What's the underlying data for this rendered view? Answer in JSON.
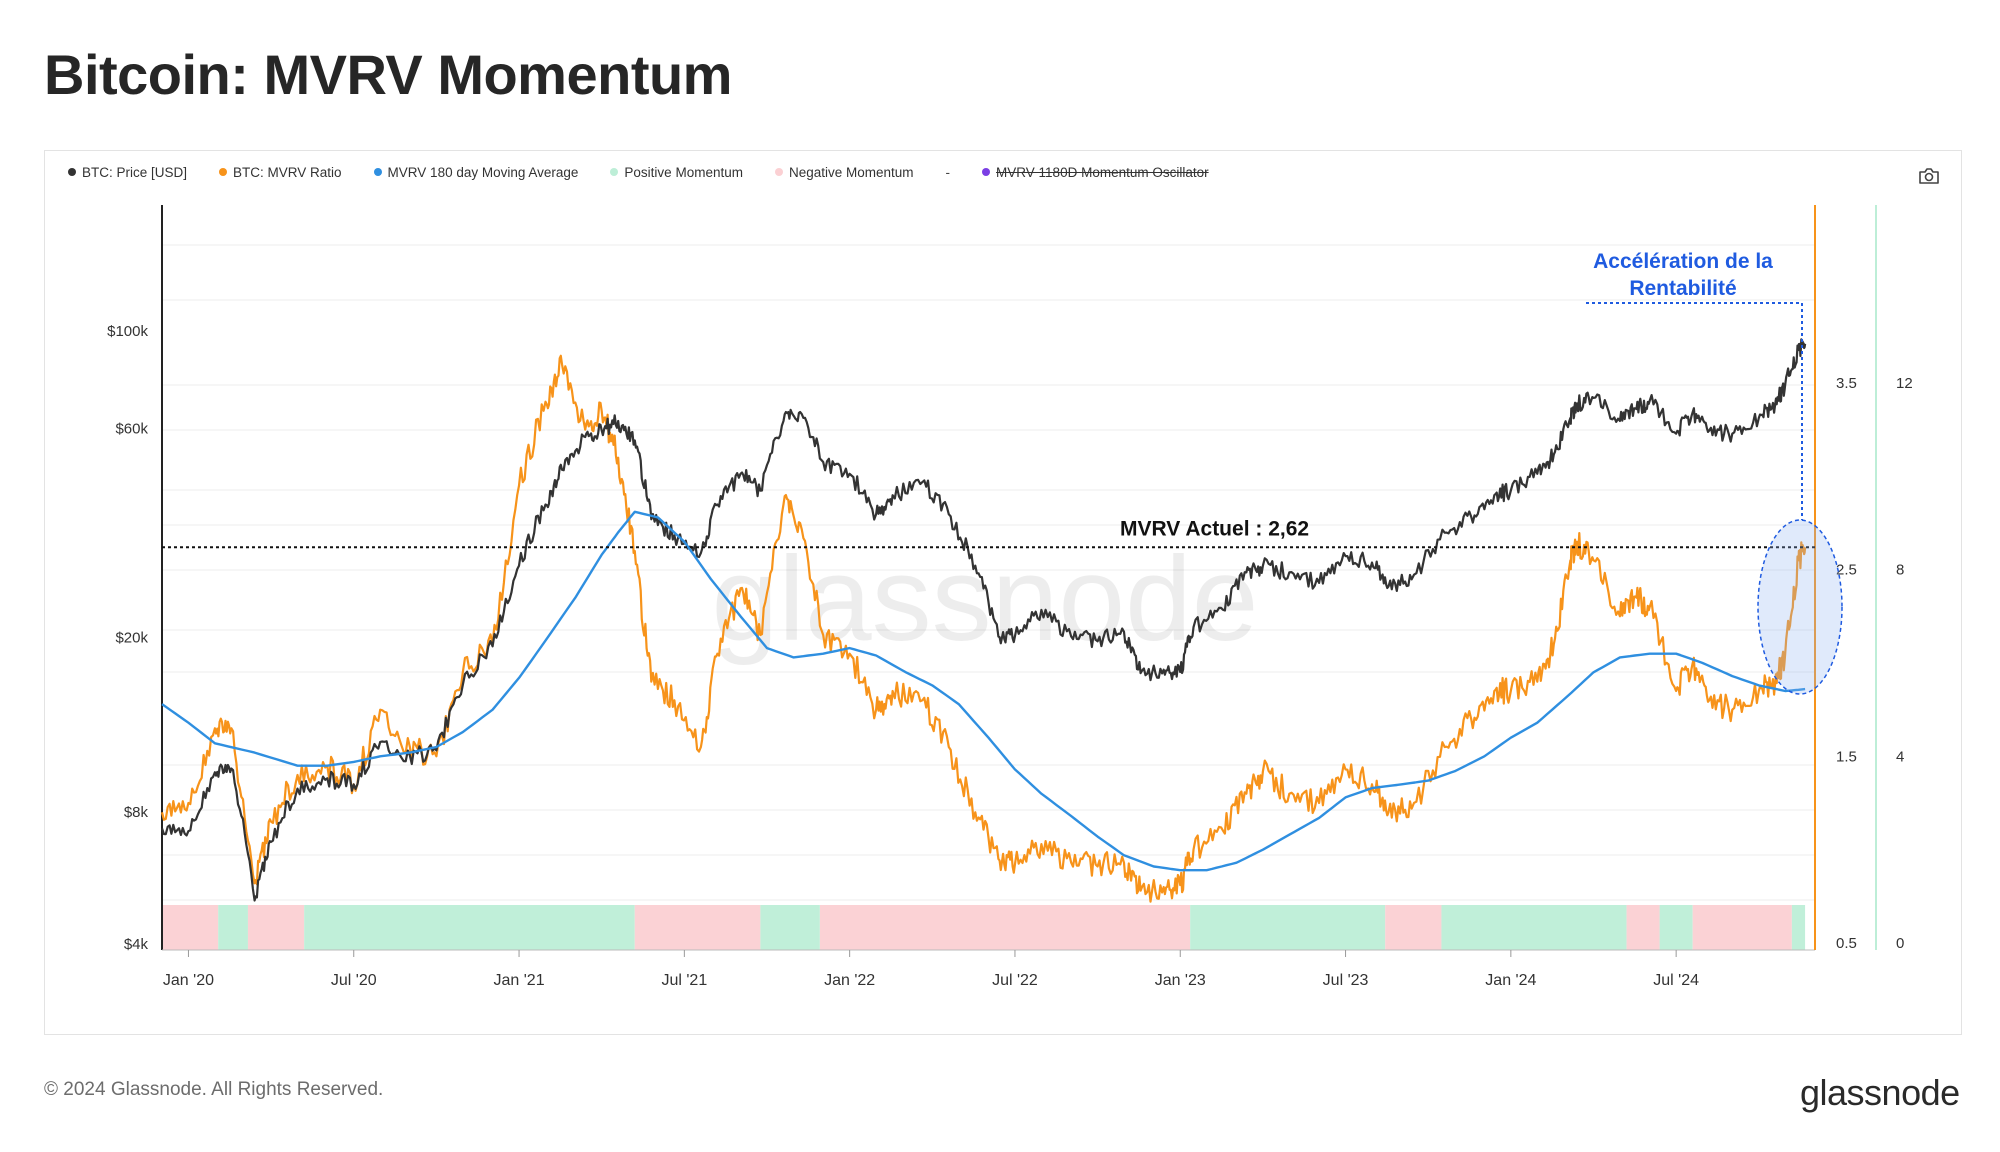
{
  "title": "Bitcoin: MVRV Momentum",
  "legend": {
    "items": [
      {
        "label": "BTC: Price [USD]",
        "color": "#333333"
      },
      {
        "label": "BTC: MVRV Ratio",
        "color": "#f7931a"
      },
      {
        "label": "MVRV 180 day Moving Average",
        "color": "#2f8fe0"
      },
      {
        "label": "Positive Momentum",
        "color": "#bdeed7"
      },
      {
        "label": "Negative Momentum",
        "color": "#fbd0d3"
      },
      {
        "label": "MVRV 1180D Momentum Oscillator",
        "color": "#7b3fe4",
        "disabled": true
      }
    ],
    "separator": "-"
  },
  "watermark": "glassnode",
  "footer": {
    "copyright": "© 2024 Glassnode. All Rights Reserved.",
    "logo": "glassnode"
  },
  "chart_data": {
    "type": "line",
    "x_ticks": [
      "Jan '20",
      "Jul '20",
      "Jan '21",
      "Jul '21",
      "Jan '22",
      "Jul '22",
      "Jan '23",
      "Jul '23",
      "Jan '24",
      "Jul '24"
    ],
    "x_tick_dates": [
      2020.0,
      2020.5,
      2021.0,
      2021.5,
      2022.0,
      2022.5,
      2023.0,
      2023.5,
      2024.0,
      2024.5
    ],
    "x_range": [
      2019.92,
      2024.92
    ],
    "y_left": {
      "scale": "log",
      "ticks": [
        "$4k",
        "$8k",
        "$20k",
        "$60k",
        "$100k"
      ],
      "tick_values": [
        4000,
        8000,
        20000,
        60000,
        100000
      ]
    },
    "y_right_mvrv": {
      "ticks": [
        "0.5",
        "1.5",
        "2.5",
        "3.5"
      ],
      "tick_values": [
        0.5,
        1.5,
        2.5,
        3.5
      ],
      "color": "#f7931a"
    },
    "y_right_oscillator": {
      "ticks": [
        "0",
        "4",
        "8",
        "12"
      ],
      "tick_values": [
        0,
        4,
        8,
        12
      ],
      "color": "#bdeed7"
    },
    "series": [
      {
        "name": "BTC: Price [USD]",
        "color": "#333333",
        "axis": "price",
        "points": [
          [
            2019.92,
            7300
          ],
          [
            2020.0,
            7200
          ],
          [
            2020.08,
            9800
          ],
          [
            2020.13,
            10000
          ],
          [
            2020.2,
            5000
          ],
          [
            2020.25,
            6800
          ],
          [
            2020.33,
            9000
          ],
          [
            2020.42,
            9500
          ],
          [
            2020.5,
            9200
          ],
          [
            2020.58,
            11500
          ],
          [
            2020.67,
            10700
          ],
          [
            2020.75,
            11000
          ],
          [
            2020.83,
            15500
          ],
          [
            2020.92,
            19000
          ],
          [
            2021.0,
            29000
          ],
          [
            2021.08,
            40000
          ],
          [
            2021.13,
            48000
          ],
          [
            2021.2,
            57000
          ],
          [
            2021.25,
            59000
          ],
          [
            2021.3,
            62000
          ],
          [
            2021.35,
            56000
          ],
          [
            2021.4,
            37000
          ],
          [
            2021.47,
            34000
          ],
          [
            2021.55,
            31000
          ],
          [
            2021.6,
            40000
          ],
          [
            2021.67,
            47000
          ],
          [
            2021.73,
            43000
          ],
          [
            2021.8,
            62000
          ],
          [
            2021.85,
            65000
          ],
          [
            2021.92,
            50000
          ],
          [
            2022.0,
            47000
          ],
          [
            2022.08,
            38000
          ],
          [
            2022.13,
            42000
          ],
          [
            2022.22,
            45000
          ],
          [
            2022.3,
            38000
          ],
          [
            2022.38,
            29000
          ],
          [
            2022.45,
            20000
          ],
          [
            2022.5,
            20000
          ],
          [
            2022.58,
            23000
          ],
          [
            2022.67,
            20000
          ],
          [
            2022.75,
            19500
          ],
          [
            2022.83,
            20500
          ],
          [
            2022.88,
            16500
          ],
          [
            2022.95,
            16800
          ],
          [
            2023.0,
            16600
          ],
          [
            2023.04,
            21000
          ],
          [
            2023.13,
            23000
          ],
          [
            2023.2,
            28000
          ],
          [
            2023.25,
            29000
          ],
          [
            2023.33,
            28000
          ],
          [
            2023.42,
            26500
          ],
          [
            2023.5,
            30500
          ],
          [
            2023.58,
            29500
          ],
          [
            2023.63,
            26000
          ],
          [
            2023.7,
            27000
          ],
          [
            2023.8,
            34500
          ],
          [
            2023.88,
            37500
          ],
          [
            2023.95,
            42000
          ],
          [
            2024.0,
            43000
          ],
          [
            2024.08,
            47000
          ],
          [
            2024.13,
            52000
          ],
          [
            2024.18,
            63000
          ],
          [
            2024.2,
            68000
          ],
          [
            2024.25,
            70000
          ],
          [
            2024.33,
            62000
          ],
          [
            2024.38,
            66000
          ],
          [
            2024.42,
            69000
          ],
          [
            2024.5,
            58000
          ],
          [
            2024.55,
            65000
          ],
          [
            2024.6,
            59000
          ],
          [
            2024.67,
            58000
          ],
          [
            2024.75,
            63000
          ],
          [
            2024.8,
            68000
          ],
          [
            2024.83,
            75000
          ],
          [
            2024.87,
            90000
          ],
          [
            2024.89,
            93000
          ]
        ]
      },
      {
        "name": "BTC: MVRV Ratio",
        "color": "#f7931a",
        "axis": "mvrv",
        "points": [
          [
            2019.92,
            1.2
          ],
          [
            2020.0,
            1.25
          ],
          [
            2020.08,
            1.65
          ],
          [
            2020.13,
            1.65
          ],
          [
            2020.2,
            0.82
          ],
          [
            2020.25,
            1.15
          ],
          [
            2020.33,
            1.4
          ],
          [
            2020.42,
            1.45
          ],
          [
            2020.5,
            1.35
          ],
          [
            2020.58,
            1.75
          ],
          [
            2020.67,
            1.55
          ],
          [
            2020.75,
            1.5
          ],
          [
            2020.83,
            1.95
          ],
          [
            2020.92,
            2.1
          ],
          [
            2021.0,
            2.95
          ],
          [
            2021.08,
            3.4
          ],
          [
            2021.13,
            3.6
          ],
          [
            2021.2,
            3.25
          ],
          [
            2021.25,
            3.35
          ],
          [
            2021.3,
            3.1
          ],
          [
            2021.35,
            2.6
          ],
          [
            2021.4,
            1.9
          ],
          [
            2021.47,
            1.8
          ],
          [
            2021.55,
            1.55
          ],
          [
            2021.6,
            2.05
          ],
          [
            2021.67,
            2.4
          ],
          [
            2021.73,
            2.15
          ],
          [
            2021.8,
            2.85
          ],
          [
            2021.85,
            2.75
          ],
          [
            2021.92,
            2.15
          ],
          [
            2022.0,
            2.05
          ],
          [
            2022.08,
            1.75
          ],
          [
            2022.13,
            1.85
          ],
          [
            2022.22,
            1.8
          ],
          [
            2022.3,
            1.55
          ],
          [
            2022.38,
            1.2
          ],
          [
            2022.45,
            0.95
          ],
          [
            2022.5,
            0.92
          ],
          [
            2022.58,
            1.03
          ],
          [
            2022.67,
            0.93
          ],
          [
            2022.75,
            0.91
          ],
          [
            2022.83,
            0.93
          ],
          [
            2022.88,
            0.78
          ],
          [
            2022.95,
            0.8
          ],
          [
            2023.0,
            0.81
          ],
          [
            2023.04,
            1.0
          ],
          [
            2023.13,
            1.1
          ],
          [
            2023.2,
            1.3
          ],
          [
            2023.25,
            1.42
          ],
          [
            2023.33,
            1.3
          ],
          [
            2023.42,
            1.25
          ],
          [
            2023.5,
            1.43
          ],
          [
            2023.58,
            1.35
          ],
          [
            2023.63,
            1.2
          ],
          [
            2023.7,
            1.22
          ],
          [
            2023.8,
            1.55
          ],
          [
            2023.88,
            1.7
          ],
          [
            2023.95,
            1.85
          ],
          [
            2024.0,
            1.85
          ],
          [
            2024.08,
            1.9
          ],
          [
            2024.13,
            2.1
          ],
          [
            2024.18,
            2.55
          ],
          [
            2024.2,
            2.65
          ],
          [
            2024.25,
            2.55
          ],
          [
            2024.33,
            2.25
          ],
          [
            2024.38,
            2.35
          ],
          [
            2024.42,
            2.3
          ],
          [
            2024.5,
            1.85
          ],
          [
            2024.55,
            2.0
          ],
          [
            2024.6,
            1.8
          ],
          [
            2024.67,
            1.75
          ],
          [
            2024.75,
            1.85
          ],
          [
            2024.8,
            1.9
          ],
          [
            2024.83,
            2.05
          ],
          [
            2024.87,
            2.55
          ],
          [
            2024.89,
            2.62
          ]
        ]
      },
      {
        "name": "MVRV 180 day Moving Average",
        "color": "#2f8fe0",
        "axis": "mvrv",
        "points": [
          [
            2019.92,
            1.78
          ],
          [
            2020.0,
            1.68
          ],
          [
            2020.08,
            1.57
          ],
          [
            2020.2,
            1.52
          ],
          [
            2020.33,
            1.45
          ],
          [
            2020.42,
            1.45
          ],
          [
            2020.5,
            1.47
          ],
          [
            2020.58,
            1.5
          ],
          [
            2020.67,
            1.52
          ],
          [
            2020.75,
            1.55
          ],
          [
            2020.83,
            1.63
          ],
          [
            2020.92,
            1.75
          ],
          [
            2021.0,
            1.92
          ],
          [
            2021.08,
            2.12
          ],
          [
            2021.17,
            2.35
          ],
          [
            2021.25,
            2.58
          ],
          [
            2021.3,
            2.7
          ],
          [
            2021.35,
            2.81
          ],
          [
            2021.42,
            2.78
          ],
          [
            2021.5,
            2.65
          ],
          [
            2021.58,
            2.45
          ],
          [
            2021.67,
            2.25
          ],
          [
            2021.75,
            2.08
          ],
          [
            2021.83,
            2.03
          ],
          [
            2021.92,
            2.05
          ],
          [
            2022.0,
            2.08
          ],
          [
            2022.08,
            2.04
          ],
          [
            2022.17,
            1.95
          ],
          [
            2022.25,
            1.88
          ],
          [
            2022.33,
            1.78
          ],
          [
            2022.42,
            1.6
          ],
          [
            2022.5,
            1.43
          ],
          [
            2022.58,
            1.3
          ],
          [
            2022.67,
            1.18
          ],
          [
            2022.75,
            1.07
          ],
          [
            2022.83,
            0.97
          ],
          [
            2022.92,
            0.91
          ],
          [
            2023.0,
            0.89
          ],
          [
            2023.08,
            0.89
          ],
          [
            2023.17,
            0.93
          ],
          [
            2023.25,
            1.0
          ],
          [
            2023.33,
            1.08
          ],
          [
            2023.42,
            1.17
          ],
          [
            2023.5,
            1.28
          ],
          [
            2023.58,
            1.33
          ],
          [
            2023.67,
            1.35
          ],
          [
            2023.75,
            1.37
          ],
          [
            2023.83,
            1.42
          ],
          [
            2023.92,
            1.5
          ],
          [
            2024.0,
            1.6
          ],
          [
            2024.08,
            1.68
          ],
          [
            2024.17,
            1.82
          ],
          [
            2024.25,
            1.95
          ],
          [
            2024.33,
            2.03
          ],
          [
            2024.42,
            2.05
          ],
          [
            2024.5,
            2.05
          ],
          [
            2024.58,
            2.0
          ],
          [
            2024.67,
            1.93
          ],
          [
            2024.75,
            1.88
          ],
          [
            2024.83,
            1.85
          ],
          [
            2024.89,
            1.86
          ]
        ]
      }
    ],
    "momentum_bands": [
      {
        "from": 2019.92,
        "to": 2020.09,
        "state": "negative"
      },
      {
        "from": 2020.09,
        "to": 2020.18,
        "state": "positive"
      },
      {
        "from": 2020.18,
        "to": 2020.35,
        "state": "negative"
      },
      {
        "from": 2020.35,
        "to": 2021.35,
        "state": "positive"
      },
      {
        "from": 2021.35,
        "to": 2021.73,
        "state": "negative"
      },
      {
        "from": 2021.73,
        "to": 2021.91,
        "state": "positive"
      },
      {
        "from": 2021.91,
        "to": 2023.03,
        "state": "negative"
      },
      {
        "from": 2023.03,
        "to": 2023.62,
        "state": "positive"
      },
      {
        "from": 2023.62,
        "to": 2023.79,
        "state": "negative"
      },
      {
        "from": 2023.79,
        "to": 2024.35,
        "state": "positive"
      },
      {
        "from": 2024.35,
        "to": 2024.45,
        "state": "negative"
      },
      {
        "from": 2024.45,
        "to": 2024.55,
        "state": "positive"
      },
      {
        "from": 2024.55,
        "to": 2024.85,
        "state": "negative"
      },
      {
        "from": 2024.85,
        "to": 2024.89,
        "state": "positive"
      }
    ],
    "annotations": {
      "mvrv_line_label": "MVRV Actuel : 2,62",
      "mvrv_line_value": 2.62,
      "acceleration_label_line1": "Accélération de la",
      "acceleration_label_line2": "Rentabilité",
      "highlight_color": "#1f5be0"
    },
    "grid": true
  }
}
